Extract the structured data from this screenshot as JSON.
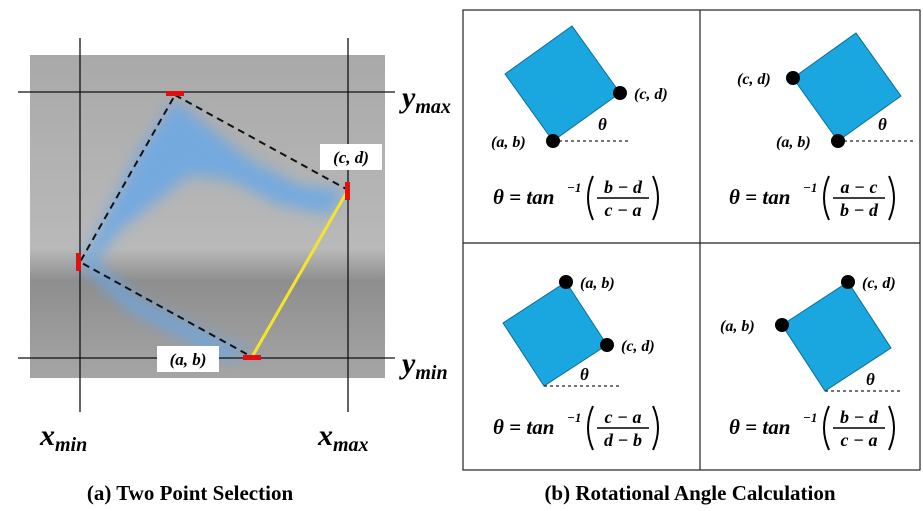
{
  "left": {
    "y_max": {
      "base": "y",
      "sub": "max"
    },
    "y_min": {
      "base": "y",
      "sub": "min"
    },
    "x_min": {
      "base": "x",
      "sub": "min"
    },
    "x_max": {
      "base": "x",
      "sub": "max"
    },
    "point_cd": "(c, d)",
    "point_ab": "(a, b)",
    "caption": "(a) Two Point Selection"
  },
  "right": {
    "caption": "(b) Rotational Angle Calculation",
    "quadrants": [
      {
        "a_b": "(a, b)",
        "c_d": "(c, d)",
        "theta": "θ",
        "formula": {
          "lhs": "θ = tan",
          "exp": "−1",
          "num": "b − d",
          "den": "c − a"
        }
      },
      {
        "a_b": "(a, b)",
        "c_d": "(c, d)",
        "theta": "θ",
        "formula": {
          "lhs": "θ = tan",
          "exp": "−1",
          "num": "a − c",
          "den": "b − d"
        }
      },
      {
        "a_b": "(a, b)",
        "c_d": "(c, d)",
        "theta": "θ",
        "formula": {
          "lhs": "θ = tan",
          "exp": "−1",
          "num": "c − a",
          "den": "d − b"
        }
      },
      {
        "a_b": "(a, b)",
        "c_d": "(c, d)",
        "theta": "θ",
        "formula": {
          "lhs": "θ = tan",
          "exp": "−1",
          "num": "b − d",
          "den": "c − a"
        }
      }
    ]
  }
}
